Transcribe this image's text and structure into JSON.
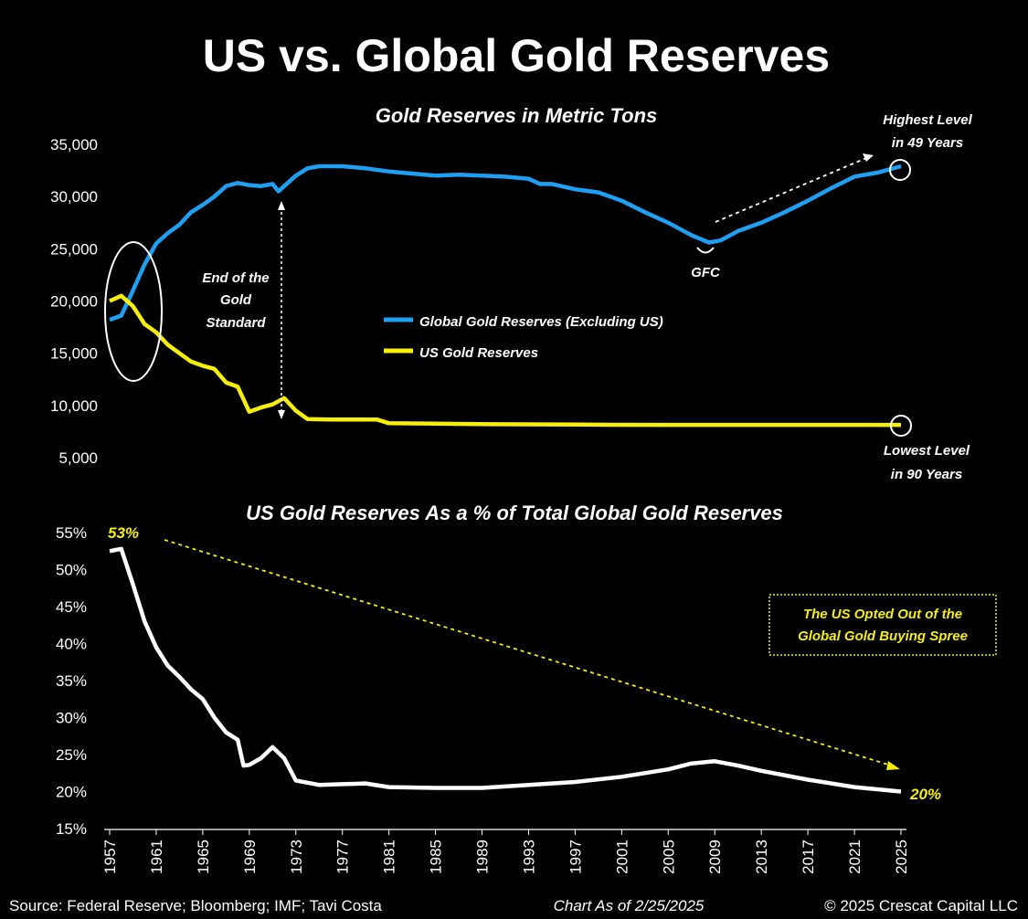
{
  "chart_data": [
    {
      "type": "line",
      "title": "US vs. Global Gold Reserves",
      "subtitle": "Gold Reserves in Metric Tons",
      "ylim": [
        5000,
        35000
      ],
      "yticks": [
        5000,
        10000,
        15000,
        20000,
        25000,
        30000,
        35000
      ],
      "ytick_labels": [
        "5,000",
        "10,000",
        "15,000",
        "20,000",
        "25,000",
        "30,000",
        "35,000"
      ],
      "series": [
        {
          "name": "Global Gold Reserves (Excluding US)",
          "color": "#1e9ff2",
          "points": [
            [
              1957.0,
              18200
            ],
            [
              1958.0,
              18600
            ],
            [
              1959.0,
              21000
            ],
            [
              1960.0,
              23500
            ],
            [
              1961.0,
              25500
            ],
            [
              1962.0,
              26500
            ],
            [
              1963.0,
              27300
            ],
            [
              1964.0,
              28500
            ],
            [
              1965.0,
              29200
            ],
            [
              1966.0,
              30000
            ],
            [
              1967.0,
              31000
            ],
            [
              1968.0,
              31300
            ],
            [
              1969.0,
              31100
            ],
            [
              1970.0,
              31000
            ],
            [
              1971.0,
              31200
            ],
            [
              1971.5,
              30500
            ],
            [
              1972.0,
              31000
            ],
            [
              1973.0,
              32000
            ],
            [
              1974.0,
              32700
            ],
            [
              1975.0,
              32900
            ],
            [
              1977.0,
              32900
            ],
            [
              1979.0,
              32700
            ],
            [
              1981.0,
              32400
            ],
            [
              1983.0,
              32200
            ],
            [
              1985.0,
              32000
            ],
            [
              1987.0,
              32100
            ],
            [
              1989.0,
              32000
            ],
            [
              1991.0,
              31900
            ],
            [
              1993.0,
              31700
            ],
            [
              1994.0,
              31200
            ],
            [
              1995.0,
              31200
            ],
            [
              1997.0,
              30700
            ],
            [
              1999.0,
              30400
            ],
            [
              2001.0,
              29600
            ],
            [
              2003.0,
              28500
            ],
            [
              2005.0,
              27500
            ],
            [
              2007.0,
              26300
            ],
            [
              2008.5,
              25600
            ],
            [
              2009.5,
              25800
            ],
            [
              2011.0,
              26700
            ],
            [
              2013.0,
              27500
            ],
            [
              2015.0,
              28500
            ],
            [
              2017.0,
              29600
            ],
            [
              2019.0,
              30800
            ],
            [
              2021.0,
              31900
            ],
            [
              2023.0,
              32300
            ],
            [
              2025.0,
              32900
            ]
          ]
        },
        {
          "name": "US Gold Reserves",
          "color": "#f5ef0b",
          "points": [
            [
              1957.0,
              20000
            ],
            [
              1958.0,
              20500
            ],
            [
              1959.0,
              19500
            ],
            [
              1960.0,
              17800
            ],
            [
              1961.0,
              17000
            ],
            [
              1962.0,
              15800
            ],
            [
              1963.0,
              15000
            ],
            [
              1964.0,
              14200
            ],
            [
              1965.0,
              13800
            ],
            [
              1966.0,
              13500
            ],
            [
              1967.0,
              12200
            ],
            [
              1968.0,
              11800
            ],
            [
              1969.0,
              9400
            ],
            [
              1970.0,
              9800
            ],
            [
              1971.0,
              10100
            ],
            [
              1972.0,
              10700
            ],
            [
              1973.0,
              9500
            ],
            [
              1974.0,
              8700
            ],
            [
              1976.0,
              8650
            ],
            [
              1978.0,
              8650
            ],
            [
              1980.0,
              8650
            ],
            [
              1981.0,
              8300
            ],
            [
              1985.0,
              8250
            ],
            [
              1990.0,
              8200
            ],
            [
              1995.0,
              8180
            ],
            [
              2000.0,
              8150
            ],
            [
              2005.0,
              8140
            ],
            [
              2010.0,
              8140
            ],
            [
              2015.0,
              8140
            ],
            [
              2020.0,
              8140
            ],
            [
              2025.0,
              8140
            ]
          ]
        }
      ],
      "legend_position": "center",
      "annotations": {
        "end_standard": [
          "End of the",
          "Gold",
          "Standard"
        ],
        "gfc": "GFC",
        "highest": [
          "Highest Level",
          "in 49 Years"
        ],
        "lowest": [
          "Lowest Level",
          "in 90 Years"
        ]
      }
    },
    {
      "type": "line",
      "title": "US Gold Reserves As a % of Total Global Gold Reserves",
      "ylim": [
        15,
        55
      ],
      "yticks": [
        15,
        20,
        25,
        30,
        35,
        40,
        45,
        50,
        55
      ],
      "ytick_labels": [
        "15%",
        "20%",
        "25%",
        "30%",
        "35%",
        "40%",
        "45%",
        "50%",
        "55%"
      ],
      "x_ticks": [
        1957,
        1961,
        1965,
        1969,
        1973,
        1977,
        1981,
        1985,
        1989,
        1993,
        1997,
        2001,
        2005,
        2009,
        2013,
        2017,
        2021,
        2025
      ],
      "xlim": [
        1957,
        2025
      ],
      "series": [
        {
          "name": "US share of global gold reserves",
          "color": "#ffffff",
          "points": [
            [
              1957.0,
              52.5
            ],
            [
              1958.0,
              52.8
            ],
            [
              1959.0,
              48
            ],
            [
              1960.0,
              43
            ],
            [
              1961.0,
              39.5
            ],
            [
              1962.0,
              37
            ],
            [
              1963.0,
              35.5
            ],
            [
              1964.0,
              33.8
            ],
            [
              1965.0,
              32.5
            ],
            [
              1966.0,
              30
            ],
            [
              1967.0,
              28
            ],
            [
              1968.0,
              27
            ],
            [
              1968.5,
              23.5
            ],
            [
              1969.0,
              23.6
            ],
            [
              1970.0,
              24.5
            ],
            [
              1971.0,
              26
            ],
            [
              1972.0,
              24.5
            ],
            [
              1973.0,
              21.5
            ],
            [
              1975.0,
              20.9
            ],
            [
              1977.0,
              21
            ],
            [
              1979.0,
              21.1
            ],
            [
              1981.0,
              20.6
            ],
            [
              1985.0,
              20.5
            ],
            [
              1989.0,
              20.5
            ],
            [
              1993.0,
              20.9
            ],
            [
              1997.0,
              21.3
            ],
            [
              2001.0,
              22
            ],
            [
              2005.0,
              23
            ],
            [
              2007.0,
              23.8
            ],
            [
              2009.0,
              24.1
            ],
            [
              2011.0,
              23.5
            ],
            [
              2013.0,
              22.8
            ],
            [
              2017.0,
              21.6
            ],
            [
              2021.0,
              20.6
            ],
            [
              2025.0,
              20
            ]
          ]
        }
      ],
      "annotations": {
        "start_label": "53%",
        "end_label": "20%",
        "box": [
          "The US Opted Out of the",
          "Global Gold Buying Spree"
        ]
      }
    }
  ],
  "footer": {
    "source": "Source: Federal Reserve; Bloomberg; IMF; Tavi Costa",
    "asof": "Chart As of 2/25/2025",
    "copyright": "© 2025 Crescat Capital LLC"
  },
  "colors": {
    "background": "#000000",
    "global": "#1e9ff2",
    "us": "#f5ef0b",
    "accent": "#f5ef0b",
    "share": "#ffffff"
  }
}
